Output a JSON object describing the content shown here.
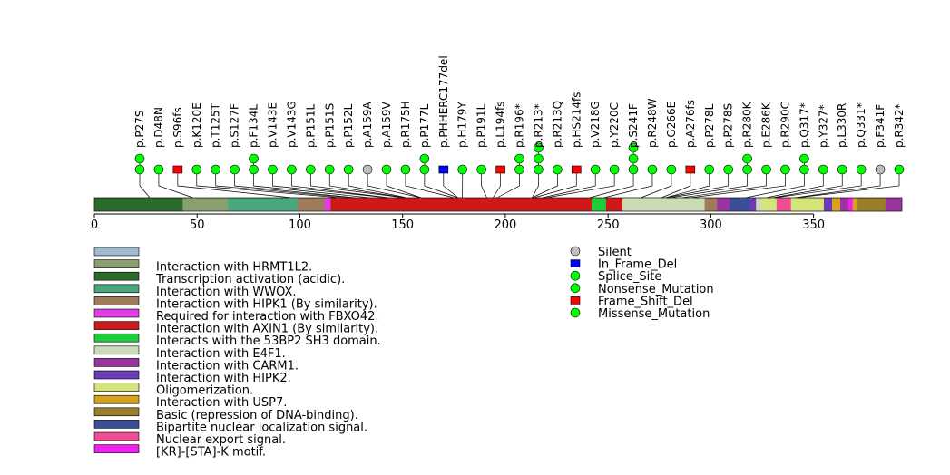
{
  "chart_data": {
    "type": "lollipop",
    "title": "",
    "xlabel": "",
    "ylabel": "",
    "protein_length": 393,
    "xlim": [
      0,
      393
    ],
    "ticks": [
      0,
      50,
      100,
      150,
      200,
      250,
      300,
      350
    ],
    "mutations": [
      {
        "label": "p.P27S",
        "pos": 27,
        "types": [
          "Missense_Mutation",
          "Missense_Mutation"
        ]
      },
      {
        "label": "p.D48N",
        "pos": 48,
        "types": [
          "Missense_Mutation"
        ]
      },
      {
        "label": "p.S96fs",
        "pos": 96,
        "types": [
          "Frame_Shift_Del"
        ]
      },
      {
        "label": "p.K120E",
        "pos": 120,
        "types": [
          "Missense_Mutation"
        ]
      },
      {
        "label": "p.T125T",
        "pos": 125,
        "types": [
          "Missense_Mutation"
        ]
      },
      {
        "label": "p.S127F",
        "pos": 127,
        "types": [
          "Missense_Mutation"
        ]
      },
      {
        "label": "p.F134L",
        "pos": 134,
        "types": [
          "Missense_Mutation",
          "Missense_Mutation"
        ]
      },
      {
        "label": "p.V143E",
        "pos": 143,
        "types": [
          "Missense_Mutation"
        ]
      },
      {
        "label": "p.V143G",
        "pos": 143,
        "types": [
          "Missense_Mutation"
        ]
      },
      {
        "label": "p.P151L",
        "pos": 151,
        "types": [
          "Missense_Mutation"
        ]
      },
      {
        "label": "p.P151S",
        "pos": 151,
        "types": [
          "Missense_Mutation"
        ]
      },
      {
        "label": "p.P152L",
        "pos": 152,
        "types": [
          "Missense_Mutation"
        ]
      },
      {
        "label": "p.A159A",
        "pos": 159,
        "types": [
          "Silent"
        ]
      },
      {
        "label": "p.A159V",
        "pos": 159,
        "types": [
          "Missense_Mutation"
        ]
      },
      {
        "label": "p.R175H",
        "pos": 175,
        "types": [
          "Missense_Mutation"
        ]
      },
      {
        "label": "p.P177L",
        "pos": 177,
        "types": [
          "Missense_Mutation",
          "Missense_Mutation"
        ]
      },
      {
        "label": "p.PHHERC177del",
        "pos": 177,
        "types": [
          "In_Frame_Del"
        ]
      },
      {
        "label": "p.H179Y",
        "pos": 179,
        "types": [
          "Missense_Mutation"
        ]
      },
      {
        "label": "p.P191L",
        "pos": 191,
        "types": [
          "Missense_Mutation"
        ]
      },
      {
        "label": "p.L194fs",
        "pos": 194,
        "types": [
          "Frame_Shift_Del"
        ]
      },
      {
        "label": "p.R196*",
        "pos": 196,
        "types": [
          "Nonsense_Mutation",
          "Nonsense_Mutation"
        ]
      },
      {
        "label": "p.R213*",
        "pos": 213,
        "types": [
          "Nonsense_Mutation",
          "Nonsense_Mutation",
          "Nonsense_Mutation"
        ]
      },
      {
        "label": "p.R213Q",
        "pos": 213,
        "types": [
          "Missense_Mutation"
        ]
      },
      {
        "label": "p.HS214fs",
        "pos": 214,
        "types": [
          "Frame_Shift_Del"
        ]
      },
      {
        "label": "p.V218G",
        "pos": 218,
        "types": [
          "Missense_Mutation"
        ]
      },
      {
        "label": "p.Y220C",
        "pos": 220,
        "types": [
          "Missense_Mutation"
        ]
      },
      {
        "label": "p.S241F",
        "pos": 241,
        "types": [
          "Missense_Mutation",
          "Missense_Mutation",
          "Missense_Mutation"
        ]
      },
      {
        "label": "p.R248W",
        "pos": 248,
        "types": [
          "Missense_Mutation"
        ]
      },
      {
        "label": "p.G266E",
        "pos": 266,
        "types": [
          "Missense_Mutation"
        ]
      },
      {
        "label": "p.A276fs",
        "pos": 276,
        "types": [
          "Frame_Shift_Del"
        ]
      },
      {
        "label": "p.P278L",
        "pos": 278,
        "types": [
          "Missense_Mutation"
        ]
      },
      {
        "label": "p.P278S",
        "pos": 278,
        "types": [
          "Missense_Mutation"
        ]
      },
      {
        "label": "p.R280K",
        "pos": 280,
        "types": [
          "Missense_Mutation",
          "Missense_Mutation"
        ]
      },
      {
        "label": "p.E286K",
        "pos": 286,
        "types": [
          "Missense_Mutation"
        ]
      },
      {
        "label": "p.R290C",
        "pos": 290,
        "types": [
          "Missense_Mutation"
        ]
      },
      {
        "label": "p.Q317*",
        "pos": 317,
        "types": [
          "Nonsense_Mutation",
          "Nonsense_Mutation"
        ]
      },
      {
        "label": "p.Y327*",
        "pos": 327,
        "types": [
          "Nonsense_Mutation"
        ]
      },
      {
        "label": "p.L330R",
        "pos": 330,
        "types": [
          "Missense_Mutation"
        ]
      },
      {
        "label": "p.Q331*",
        "pos": 331,
        "types": [
          "Nonsense_Mutation"
        ]
      },
      {
        "label": "p.F341F",
        "pos": 341,
        "types": [
          "Silent"
        ]
      },
      {
        "label": "p.R342*",
        "pos": 342,
        "types": [
          "Nonsense_Mutation"
        ]
      }
    ],
    "domains": [
      {
        "name": "Interaction with HRMT1L2.",
        "start": 1,
        "end": 393,
        "color": "#a0b8d0",
        "show_on_bar": false
      },
      {
        "name": "Interaction with HRMT1L2.",
        "start": 1,
        "end": 50,
        "color": "#8a9f70",
        "show_on_bar": false
      },
      {
        "name": "Transcription activation (acidic).",
        "start": 1,
        "end": 44,
        "color": "#2a6a2a",
        "show_on_bar": true
      },
      {
        "name": "Interaction with HRMT1L2.",
        "start": 44,
        "end": 66,
        "color": "#8a9f70",
        "show_on_bar": true
      },
      {
        "name": "Interaction with WWOX.",
        "start": 66,
        "end": 100,
        "color": "#4aa67e",
        "show_on_bar": true
      },
      {
        "name": "Interaction with HIPK1 (By similarity).",
        "start": 100,
        "end": 113,
        "color": "#9e7b5a",
        "show_on_bar": true
      },
      {
        "name": "Required for interaction with FBXO42.",
        "start": 113,
        "end": 116,
        "color": "#e23ce2",
        "show_on_bar": true
      },
      {
        "name": "Interaction with AXIN1 (By similarity).",
        "start": 116,
        "end": 243,
        "color": "#cc1a1a",
        "show_on_bar": true
      },
      {
        "name": "Interacts with the 53BP2 SH3 domain.",
        "start": 243,
        "end": 250,
        "color": "#1fcc3a",
        "show_on_bar": true
      },
      {
        "name": "Interaction with AXIN1 (By similarity).",
        "start": 250,
        "end": 258,
        "color": "#cc1a1a",
        "show_on_bar": true
      },
      {
        "name": "Interaction with E4F1.",
        "start": 258,
        "end": 298,
        "color": "#cbdbb6",
        "show_on_bar": true
      },
      {
        "name": "Interaction with HIPK1 (By similarity).",
        "start": 298,
        "end": 304,
        "color": "#9e7b5a",
        "show_on_bar": true
      },
      {
        "name": "Interaction with CARM1.",
        "start": 304,
        "end": 310,
        "color": "#9a35a0",
        "show_on_bar": true
      },
      {
        "name": "Bipartite nuclear localization signal.",
        "start": 310,
        "end": 320,
        "color": "#3c4e98",
        "show_on_bar": true
      },
      {
        "name": "Interaction with HIPK2.",
        "start": 320,
        "end": 323,
        "color": "#6a3cb4",
        "show_on_bar": true
      },
      {
        "name": "Interaction with E4F1.",
        "start": 323,
        "end": 326,
        "color": "#cbdbb6",
        "show_on_bar": true
      },
      {
        "name": "Oligomerization.",
        "start": 326,
        "end": 333,
        "color": "#d6e27a",
        "show_on_bar": true
      },
      {
        "name": "Nuclear export signal.",
        "start": 333,
        "end": 340,
        "color": "#f04e94",
        "show_on_bar": true
      },
      {
        "name": "Oligomerization.",
        "start": 340,
        "end": 356,
        "color": "#d6e27a",
        "show_on_bar": true
      },
      {
        "name": "Interaction with HIPK2.",
        "start": 356,
        "end": 360,
        "color": "#6a3cb4",
        "show_on_bar": true
      },
      {
        "name": "Interaction with USP7.",
        "start": 360,
        "end": 364,
        "color": "#d6a020",
        "show_on_bar": true
      },
      {
        "name": "Interaction with CARM1.",
        "start": 364,
        "end": 368,
        "color": "#9a35a0",
        "show_on_bar": true
      },
      {
        "name": "[KR]-[STA]-K motif.",
        "start": 368,
        "end": 370,
        "color": "#f020f0",
        "show_on_bar": true
      },
      {
        "name": "Interaction with USP7.",
        "start": 370,
        "end": 372,
        "color": "#d6a020",
        "show_on_bar": true
      },
      {
        "name": "Basic (repression of DNA-binding).",
        "start": 372,
        "end": 386,
        "color": "#9a7e2a",
        "show_on_bar": true
      },
      {
        "name": "Interaction with CARM1.",
        "start": 386,
        "end": 393,
        "color": "#9a35a0",
        "show_on_bar": true
      }
    ],
    "domain_legend": [
      {
        "label": "",
        "color": "#a0b8d0"
      },
      {
        "label": "Interaction with HRMT1L2.",
        "color": "#8a9f70"
      },
      {
        "label": "Transcription activation (acidic).",
        "color": "#2a6a2a"
      },
      {
        "label": "Interaction with WWOX.",
        "color": "#4aa67e"
      },
      {
        "label": "Interaction with HIPK1 (By similarity).",
        "color": "#9e7b5a"
      },
      {
        "label": "Required for interaction with FBXO42.",
        "color": "#e23ce2"
      },
      {
        "label": "Interaction with AXIN1 (By similarity).",
        "color": "#cc1a1a"
      },
      {
        "label": "Interacts with the 53BP2 SH3 domain.",
        "color": "#1fcc3a"
      },
      {
        "label": "Interaction with E4F1.",
        "color": "#cbdbb6"
      },
      {
        "label": "Interaction with CARM1.",
        "color": "#9a35a0"
      },
      {
        "label": "Interaction with HIPK2.",
        "color": "#6a3cb4"
      },
      {
        "label": "Oligomerization.",
        "color": "#d6e27a"
      },
      {
        "label": "Interaction with USP7.",
        "color": "#d6a020"
      },
      {
        "label": "Basic (repression of DNA-binding).",
        "color": "#9a7e2a"
      },
      {
        "label": "Bipartite nuclear localization signal.",
        "color": "#3c4e98"
      },
      {
        "label": "Nuclear export signal.",
        "color": "#f04e94"
      },
      {
        "label": "[KR]-[STA]-K motif.",
        "color": "#f020f0"
      }
    ],
    "mutation_legend": [
      {
        "label": "Silent",
        "type": "Silent",
        "shape": "circle",
        "color": "#bebebe"
      },
      {
        "label": "In_Frame_Del",
        "type": "In_Frame_Del",
        "shape": "square",
        "color": "#0000ff"
      },
      {
        "label": "Splice_Site",
        "type": "Splice_Site",
        "shape": "circle",
        "color": "#00ff00"
      },
      {
        "label": "Nonsense_Mutation",
        "type": "Nonsense_Mutation",
        "shape": "circle",
        "color": "#00ff00"
      },
      {
        "label": "Frame_Shift_Del",
        "type": "Frame_Shift_Del",
        "shape": "square",
        "color": "#ff0000"
      },
      {
        "label": "Missense_Mutation",
        "type": "Missense_Mutation",
        "shape": "circle",
        "color": "#00ff00"
      }
    ]
  }
}
